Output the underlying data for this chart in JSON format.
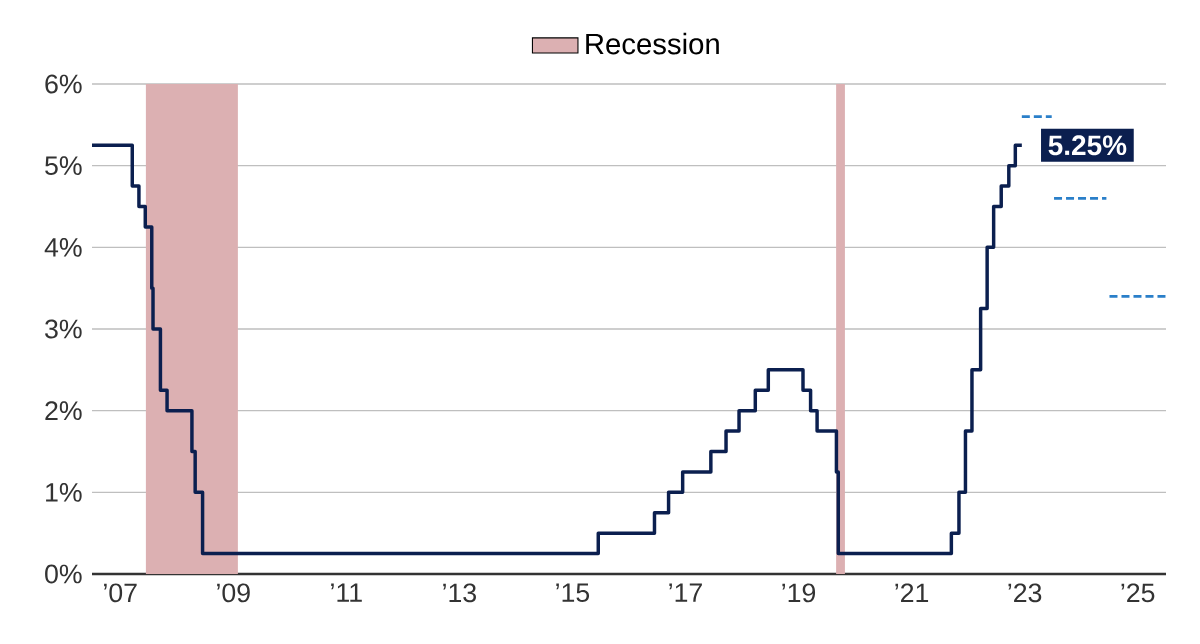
{
  "chart_data": {
    "type": "step",
    "xlim": [
      "2007-01-01",
      "2026-01-01"
    ],
    "xticks": [
      {
        "value": "2007-07-02",
        "label": "’07"
      },
      {
        "value": "2009-07-02",
        "label": "’09"
      },
      {
        "value": "2011-07-02",
        "label": "’11"
      },
      {
        "value": "2013-07-02",
        "label": "’13"
      },
      {
        "value": "2015-07-02",
        "label": "’15"
      },
      {
        "value": "2017-07-02",
        "label": "’17"
      },
      {
        "value": "2019-07-02",
        "label": "’19"
      },
      {
        "value": "2021-07-02",
        "label": "’21"
      },
      {
        "value": "2023-07-02",
        "label": "’23"
      },
      {
        "value": "2025-07-02",
        "label": "’25"
      }
    ],
    "ylim": [
      0,
      6
    ],
    "yticks": [
      {
        "value": 0,
        "label": "0%"
      },
      {
        "value": 1,
        "label": "1%"
      },
      {
        "value": 2,
        "label": "2%"
      },
      {
        "value": 3,
        "label": "3%"
      },
      {
        "value": 4,
        "label": "4%"
      },
      {
        "value": 5,
        "label": "5%"
      },
      {
        "value": 6,
        "label": "6%"
      }
    ],
    "grid": "y",
    "legend": "top",
    "series": [
      {
        "color": "#0b1f4f",
        "x": [
          "2007-01-01",
          "2007-09-18",
          "2007-10-31",
          "2007-12-11",
          "2008-01-22",
          "2008-01-30",
          "2008-03-18",
          "2008-04-30",
          "2008-10-08",
          "2008-10-29",
          "2008-12-16",
          "2015-12-16",
          "2016-12-14",
          "2017-03-15",
          "2017-06-14",
          "2017-12-13",
          "2018-03-21",
          "2018-06-13",
          "2018-09-26",
          "2018-12-19",
          "2019-07-31",
          "2019-09-18",
          "2019-10-30",
          "2020-03-03",
          "2020-03-15",
          "2022-03-16",
          "2022-05-04",
          "2022-06-15",
          "2022-07-27",
          "2022-09-21",
          "2022-11-02",
          "2022-12-14",
          "2023-02-01",
          "2023-03-22",
          "2023-05-03",
          "2023-06-14"
        ],
        "values": [
          5.25,
          4.75,
          4.5,
          4.25,
          3.5,
          3.0,
          2.25,
          2.0,
          1.5,
          1.0,
          0.25,
          0.5,
          0.75,
          1.0,
          1.25,
          1.5,
          1.75,
          2.0,
          2.25,
          2.5,
          2.25,
          2.0,
          1.75,
          1.25,
          0.25,
          0.5,
          1.0,
          1.75,
          2.5,
          3.25,
          4.0,
          4.5,
          4.75,
          5.0,
          5.25,
          5.25
        ]
      },
      {
        "type": "line",
        "line_style": "dashed",
        "color": "#2a7fc9",
        "x": [
          "2023-06-14",
          "2023-12-24"
        ],
        "values": [
          5.6,
          5.6
        ]
      },
      {
        "type": "line",
        "line_style": "dashed",
        "color": "#2a7fc9",
        "x": [
          "2024-01-08",
          "2024-12-12"
        ],
        "values": [
          4.6,
          4.6
        ]
      },
      {
        "type": "line",
        "line_style": "dashed",
        "color": "#2a7fc9",
        "x": [
          "2025-01-01",
          "2026-01-01"
        ],
        "values": [
          3.4,
          3.4
        ]
      }
    ],
    "bands": [
      {
        "axis": "x",
        "from": "2007-12-15",
        "to": "2009-08-01",
        "label": "Recession",
        "color": "#dcb0b2"
      },
      {
        "axis": "x",
        "from": "2020-03-01",
        "to": "2020-04-27",
        "color": "#dcb0b2"
      }
    ],
    "annotations": [
      {
        "text": "5.25%",
        "x": "2023-06-14",
        "y": 5.25
      }
    ]
  }
}
